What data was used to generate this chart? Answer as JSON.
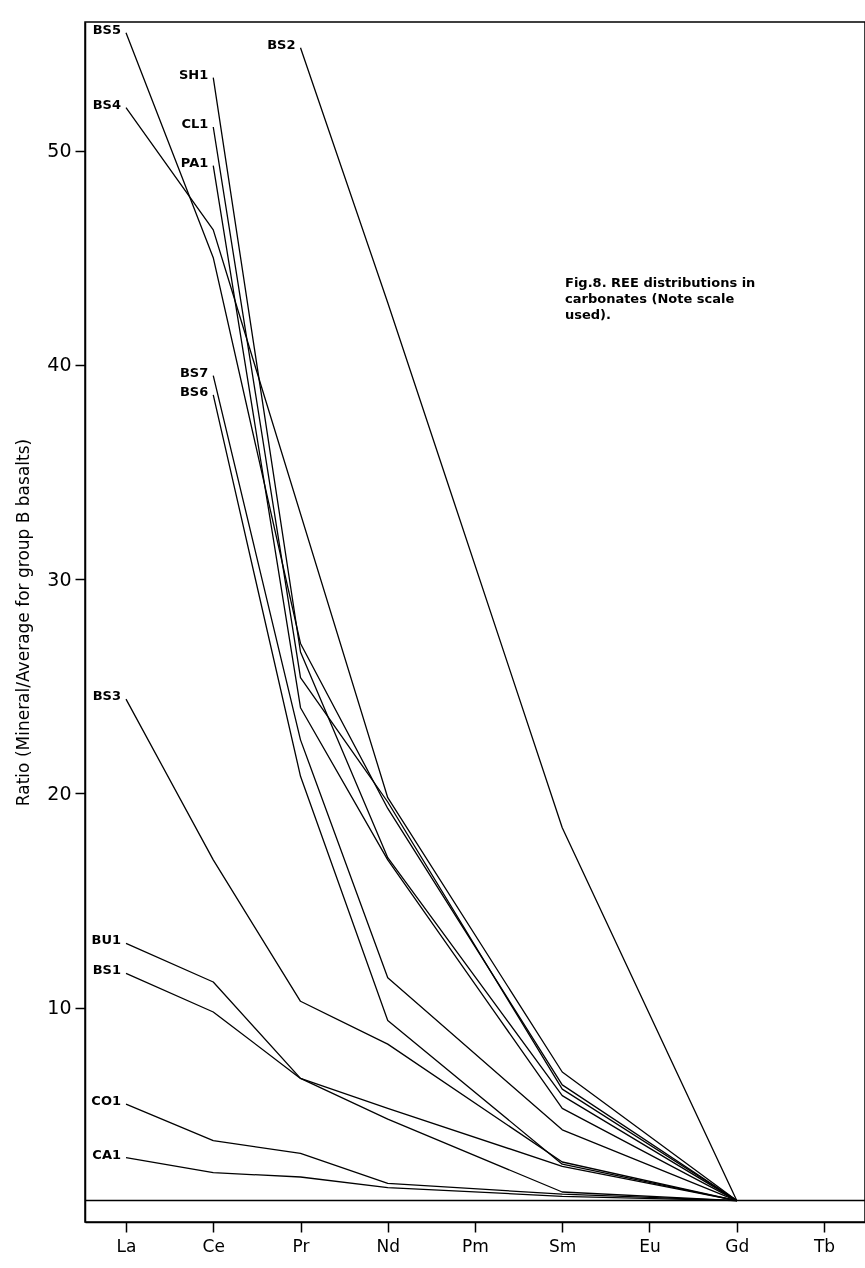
{
  "chart_data": {
    "type": "line",
    "ylabel": "Ratio (Mineral/Average for group B basalts)",
    "categories": [
      "La",
      "Ce",
      "Pr",
      "Nd",
      "Pm",
      "Sm",
      "Eu",
      "Gd",
      "Tb"
    ],
    "ylim": [
      0,
      56
    ],
    "yticks": [
      10,
      20,
      30,
      40,
      50
    ],
    "annotations": [
      "Fig.8. REE distributions in\ncarbonates (Note scale\nused)."
    ],
    "ref_lines": [
      {
        "axis": "y",
        "value": 1,
        "color": "#000000"
      }
    ],
    "marker": "none",
    "line_style": "solid",
    "grid": false,
    "series": [
      {
        "name": "BS5",
        "color": "#000000",
        "values": [
          55.5,
          45.0,
          27.0,
          19.3,
          null,
          6.4,
          null,
          1,
          null
        ]
      },
      {
        "name": "SH1",
        "color": "#000000",
        "values": [
          null,
          53.4,
          26.6,
          17.0,
          null,
          5.9,
          null,
          1,
          null
        ]
      },
      {
        "name": "BS2",
        "color": "#000000",
        "values": [
          null,
          null,
          54.8,
          42.9,
          null,
          18.4,
          null,
          1,
          null
        ]
      },
      {
        "name": "BS4",
        "color": "#000000",
        "values": [
          52.0,
          46.3,
          null,
          19.8,
          null,
          7.0,
          null,
          1,
          null
        ]
      },
      {
        "name": "CL1",
        "color": "#000000",
        "values": [
          null,
          51.1,
          25.4,
          19.6,
          null,
          6.2,
          null,
          1,
          null
        ]
      },
      {
        "name": "PA1",
        "color": "#000000",
        "values": [
          null,
          49.3,
          24.0,
          16.9,
          null,
          5.3,
          null,
          1,
          null
        ]
      },
      {
        "name": "BS7",
        "color": "#000000",
        "values": [
          null,
          39.5,
          22.5,
          11.4,
          null,
          4.3,
          null,
          1,
          null
        ]
      },
      {
        "name": "BS6",
        "color": "#000000",
        "values": [
          null,
          38.6,
          20.8,
          9.4,
          null,
          2.7,
          null,
          1,
          null
        ]
      },
      {
        "name": "BS3",
        "color": "#000000",
        "values": [
          24.4,
          16.9,
          10.3,
          8.3,
          null,
          2.8,
          null,
          1,
          null
        ]
      },
      {
        "name": "BU1",
        "color": "#000000",
        "values": [
          13.0,
          11.2,
          6.7,
          5.3,
          null,
          2.6,
          null,
          1,
          null
        ]
      },
      {
        "name": "BS1",
        "color": "#000000",
        "values": [
          11.6,
          9.8,
          6.7,
          4.8,
          null,
          1.4,
          null,
          1,
          null
        ]
      },
      {
        "name": "CO1",
        "color": "#000000",
        "values": [
          5.5,
          3.8,
          3.2,
          1.8,
          null,
          1.3,
          null,
          1,
          null
        ]
      },
      {
        "name": "CA1",
        "color": "#000000",
        "values": [
          3.0,
          2.3,
          2.1,
          1.6,
          null,
          1.2,
          null,
          1,
          null
        ]
      }
    ]
  }
}
